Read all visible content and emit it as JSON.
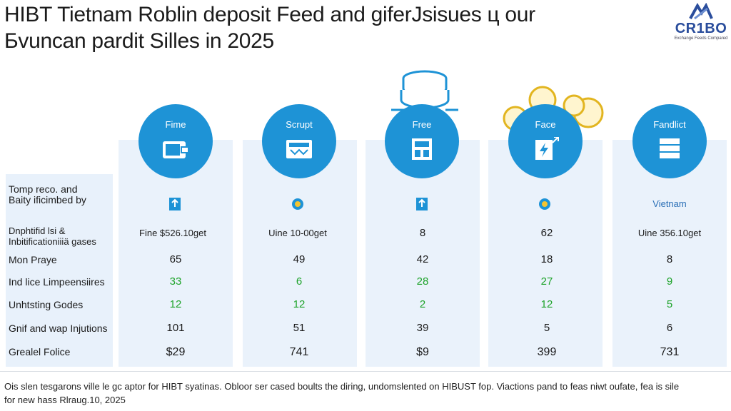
{
  "title": {
    "line1": "HIBT Tietnam Roblin deposit Feed and giferJsisues ц our",
    "line2": "Бvuncan pardit Silles in 2025"
  },
  "logo": {
    "text": "CR1BO",
    "subtitle": "Exchange Feeds Compared"
  },
  "chart_data": {
    "type": "table",
    "title": "HIBT Tietnam Roblin deposit Feed and giferJsisues ц our Бvuncan pardit Silles in 2025",
    "columns": [
      {
        "label": "Fime",
        "icon": "wallet-icon"
      },
      {
        "label": "Scrupt",
        "icon": "atm-icon"
      },
      {
        "label": "Free",
        "icon": "box-icon"
      },
      {
        "label": "Face",
        "icon": "card-bolt-icon"
      },
      {
        "label": "Fandlict",
        "icon": "server-icon"
      }
    ],
    "rows": [
      {
        "label": "Tomp reco. and\nBaity ificimbed by",
        "values": [
          "",
          "",
          "",
          "",
          "Vietnam"
        ]
      },
      {
        "label": "Dnphtifid lsi &\nInbitificationiiiä gases",
        "values": [
          "Fine $526.10get",
          "Uine 10-00get",
          "8",
          "62",
          "Uine 356.10get"
        ]
      },
      {
        "label": "Mon Praye",
        "values": [
          "65",
          "49",
          "42",
          "18",
          "8"
        ]
      },
      {
        "label": "Ind lice Limpeensiires",
        "values": [
          "33",
          "6",
          "28",
          "27",
          "9"
        ],
        "color": "#1ea32a"
      },
      {
        "label": "Unhtsting Godes",
        "values": [
          "12",
          "12",
          "2",
          "12",
          "5"
        ],
        "color": "#1ea32a"
      },
      {
        "label": "Gnif and wap Injutions",
        "values": [
          "101",
          "51",
          "39",
          "5",
          "6"
        ]
      },
      {
        "label": "Grealel Folice",
        "values": [
          "$29",
          "741",
          "$9",
          "399",
          "731"
        ]
      }
    ]
  },
  "footnote": {
    "line1": "Ois slen tesgarons ville le gc aptor for HIBT syatinas. Obloor ser cased boults the diring, undomslented on HIBUST fop. Viactions pand to feas niwt oufate, fea is sile",
    "line2": "for new hass Rlraug.10, 2025"
  },
  "colors": {
    "accent": "#1e93d6",
    "green": "#1ea32a",
    "panel": "#eaf2fb"
  }
}
